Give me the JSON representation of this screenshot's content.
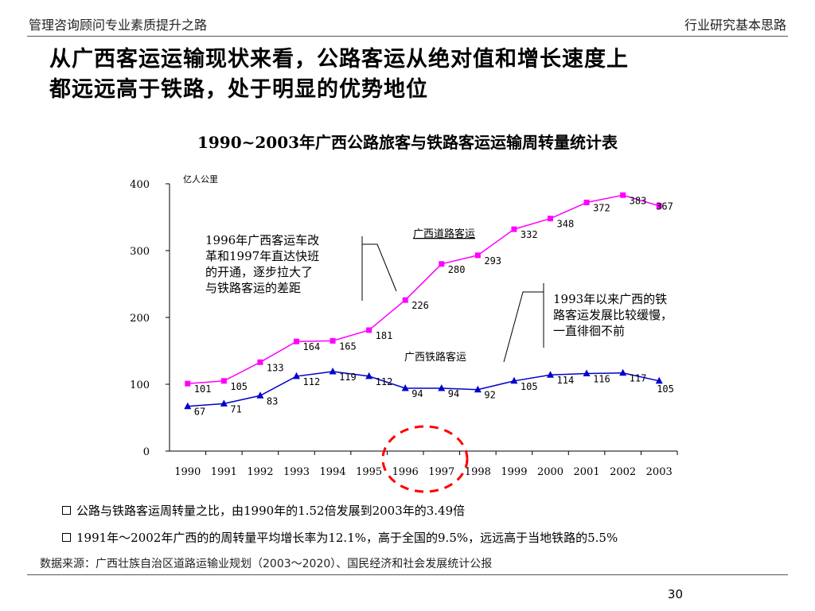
{
  "header": {
    "left": "管理咨询顾问专业素质提升之路",
    "right": "行业研究基本思路"
  },
  "title": {
    "line1": "从广西客运运输现状来看，公路客运从绝对值和增长速度上",
    "line2": "都远远高于铁路，处于明显的优势地位"
  },
  "chart_data": {
    "type": "line",
    "title": "1990~2003年广西公路旅客与铁路客运运输周转量统计表",
    "unit": "亿人公里",
    "ylim": [
      0,
      400
    ],
    "yticks": [
      0,
      100,
      200,
      300,
      400
    ],
    "categories": [
      "1990",
      "1991",
      "1992",
      "1993",
      "1994",
      "1995",
      "1996",
      "1997",
      "1998",
      "1999",
      "2000",
      "2001",
      "2002",
      "2003"
    ],
    "series": [
      {
        "name": "广西道路客运",
        "color": "#ff00ff",
        "marker": "square",
        "values": [
          101,
          105,
          133,
          164,
          165,
          181,
          226,
          280,
          293,
          332,
          348,
          372,
          383,
          367
        ]
      },
      {
        "name": "广西铁路客运",
        "color": "#0000cc",
        "marker": "triangle",
        "values": [
          67,
          71,
          83,
          112,
          119,
          112,
          94,
          94,
          92,
          105,
          114,
          116,
          117,
          105
        ]
      }
    ],
    "annotations": [
      {
        "lines": [
          "1996年广西客运车改",
          "革和1997年直达快班",
          "的开通，逐步拉大了",
          "与铁路客运的差距"
        ]
      },
      {
        "lines": [
          "1993年以来广西的铁",
          "路客运发展比较缓慢，",
          "一直徘徊不前"
        ]
      }
    ],
    "highlight_color": "#ff0000"
  },
  "bullets": [
    "公路与铁路客运周转量之比，由1990年的1.52倍发展到2003年的3.49倍",
    "1991年～2002年广西的的周转量平均增长率为12.1%，高于全国的9.5%，远远高于当地铁路的5.5%"
  ],
  "source": "数据来源：广西壮族自治区道路运输业规划（2003～2020）、国民经济和社会发展统计公报",
  "page_number": "30"
}
